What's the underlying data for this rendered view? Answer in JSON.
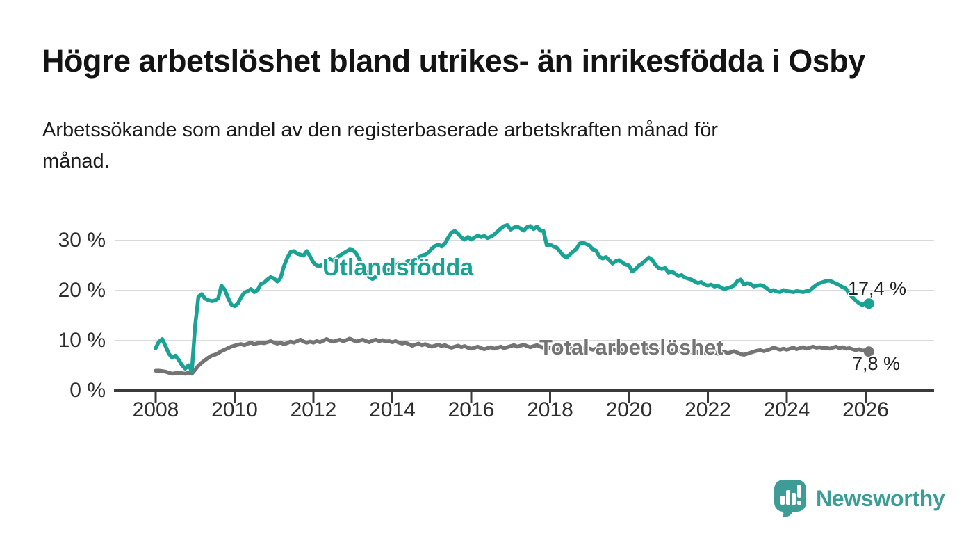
{
  "chart_data": {
    "type": "line",
    "title": "Högre arbetslöshet bland utrikes- än inrikesfödda i Osby",
    "subtitle": "Arbetssökande som andel av den registerbaserade arbetskraften månad för månad.",
    "subtitle_lines": [
      "Arbetssökande som andel av den registerbaserade arbetskraften månad för",
      "månad."
    ],
    "x_axis": {
      "ticks": [
        2008,
        2010,
        2012,
        2014,
        2016,
        2018,
        2020,
        2022,
        2024,
        2026
      ],
      "start_year": 2008,
      "start_month": 1,
      "frequency": "monthly"
    },
    "y_axis": {
      "tick_labels": [
        "0 %",
        "10 %",
        "20 %",
        "30 %"
      ],
      "tick_values": [
        0,
        10,
        20,
        30
      ],
      "unit": "%",
      "ylim": [
        0,
        34
      ]
    },
    "grid": true,
    "legend": "inline-labels",
    "series": [
      {
        "name": "Utlandsfödda",
        "color": "#1AA295",
        "end_value": 17.4,
        "end_label": "17,4 %",
        "values": [
          8.5,
          9.8,
          10.3,
          8.9,
          7.4,
          6.6,
          7.0,
          6.2,
          5.1,
          4.4,
          5.1,
          3.9,
          13.0,
          18.8,
          19.3,
          18.4,
          18.1,
          17.9,
          18.0,
          18.4,
          21.0,
          20.2,
          18.6,
          17.2,
          16.9,
          17.4,
          18.7,
          19.6,
          19.9,
          20.3,
          19.7,
          20.1,
          21.3,
          21.6,
          22.2,
          22.7,
          22.4,
          21.8,
          22.5,
          24.8,
          26.5,
          27.7,
          27.9,
          27.4,
          27.2,
          27.0,
          27.9,
          26.8,
          25.6,
          25.0,
          24.9,
          25.3,
          25.8,
          26.3,
          26.0,
          26.5,
          27.0,
          27.4,
          27.8,
          28.2,
          28.1,
          27.4,
          26.2,
          25.0,
          23.6,
          22.6,
          22.3,
          22.8,
          23.4,
          23.9,
          24.3,
          24.0,
          24.4,
          24.9,
          25.4,
          25.1,
          25.6,
          26.0,
          25.7,
          26.2,
          26.6,
          27.0,
          27.2,
          27.6,
          28.4,
          28.9,
          29.2,
          28.8,
          29.4,
          30.6,
          31.6,
          31.9,
          31.4,
          30.6,
          30.2,
          30.7,
          30.2,
          30.6,
          31.0,
          30.7,
          30.9,
          30.5,
          30.8,
          31.2,
          31.8,
          32.4,
          32.9,
          33.1,
          32.2,
          32.6,
          32.8,
          32.4,
          32.0,
          32.7,
          32.9,
          32.3,
          32.8,
          32.0,
          31.9,
          29.0,
          29.2,
          28.8,
          28.6,
          27.8,
          27.0,
          26.6,
          27.2,
          27.8,
          28.3,
          29.4,
          29.6,
          29.3,
          29.0,
          28.2,
          28.0,
          26.8,
          26.4,
          26.7,
          26.1,
          25.4,
          25.9,
          26.1,
          25.6,
          25.2,
          25.0,
          23.8,
          24.3,
          25.0,
          25.4,
          26.0,
          26.6,
          26.2,
          25.2,
          24.5,
          24.3,
          24.5,
          23.6,
          23.8,
          23.4,
          22.9,
          23.1,
          22.6,
          22.4,
          22.2,
          21.8,
          21.5,
          21.7,
          21.2,
          21.0,
          21.2,
          20.8,
          21.0,
          20.6,
          20.3,
          20.5,
          20.7,
          21.0,
          21.9,
          22.2,
          21.2,
          21.5,
          21.3,
          20.8,
          21.0,
          21.1,
          20.9,
          20.4,
          19.9,
          20.1,
          19.8,
          19.7,
          20.1,
          19.9,
          19.8,
          19.7,
          19.9,
          19.8,
          19.7,
          19.9,
          20.0,
          20.6,
          21.1,
          21.5,
          21.7,
          21.9,
          22.0,
          21.7,
          21.4,
          21.1,
          20.7,
          20.4,
          19.4,
          18.7,
          18.0,
          17.5,
          17.1,
          17.6,
          17.4
        ]
      },
      {
        "name": "Total arbetslöshet",
        "color": "#747474",
        "end_value": 7.8,
        "end_label": "7,8 %",
        "values": [
          4.0,
          4.0,
          3.9,
          3.8,
          3.6,
          3.4,
          3.5,
          3.6,
          3.5,
          3.4,
          3.6,
          3.4,
          4.2,
          5.0,
          5.6,
          6.1,
          6.6,
          7.0,
          7.2,
          7.5,
          7.9,
          8.2,
          8.5,
          8.8,
          9.0,
          9.2,
          9.3,
          9.1,
          9.4,
          9.6,
          9.3,
          9.5,
          9.6,
          9.5,
          9.7,
          9.9,
          9.6,
          9.4,
          9.6,
          9.3,
          9.5,
          9.8,
          9.6,
          9.9,
          10.2,
          9.8,
          9.6,
          9.8,
          9.6,
          9.9,
          9.7,
          10.0,
          10.3,
          10.0,
          9.8,
          10.0,
          10.2,
          9.9,
          10.1,
          10.4,
          10.1,
          9.8,
          10.0,
          10.2,
          9.9,
          9.7,
          10.0,
          10.2,
          9.9,
          10.1,
          9.8,
          9.9,
          9.7,
          9.9,
          9.6,
          9.4,
          9.6,
          9.3,
          9.0,
          9.2,
          9.4,
          9.1,
          9.3,
          9.0,
          8.8,
          9.0,
          9.2,
          8.9,
          9.1,
          8.8,
          8.6,
          8.8,
          9.0,
          8.7,
          8.9,
          8.6,
          8.4,
          8.6,
          8.8,
          8.5,
          8.3,
          8.5,
          8.7,
          8.4,
          8.6,
          8.8,
          8.5,
          8.7,
          8.9,
          9.1,
          8.8,
          9.0,
          9.2,
          8.9,
          8.7,
          8.9,
          9.1,
          8.8,
          8.6,
          8.4,
          8.6,
          8.4,
          8.2,
          8.4,
          8.6,
          8.3,
          8.5,
          8.7,
          8.4,
          8.2,
          8.4,
          8.6,
          8.4,
          8.2,
          8.4,
          8.1,
          8.3,
          8.5,
          8.2,
          8.4,
          8.1,
          8.3,
          8.0,
          8.2,
          8.0,
          8.2,
          8.4,
          8.6,
          8.8,
          8.6,
          8.4,
          8.6,
          8.3,
          8.1,
          8.3,
          8.0,
          8.2,
          8.0,
          8.2,
          7.9,
          8.1,
          7.8,
          8.0,
          7.7,
          7.9,
          7.6,
          7.8,
          7.5,
          7.7,
          7.5,
          7.7,
          7.4,
          7.6,
          7.8,
          7.5,
          7.7,
          7.9,
          7.6,
          7.3,
          7.2,
          7.4,
          7.6,
          7.8,
          8.0,
          8.1,
          7.9,
          8.1,
          8.3,
          8.6,
          8.4,
          8.2,
          8.4,
          8.2,
          8.4,
          8.6,
          8.3,
          8.5,
          8.7,
          8.4,
          8.6,
          8.8,
          8.6,
          8.7,
          8.5,
          8.6,
          8.4,
          8.6,
          8.8,
          8.5,
          8.7,
          8.4,
          8.5,
          8.3,
          8.1,
          8.3,
          8.0,
          8.1,
          7.8
        ]
      }
    ]
  },
  "branding": {
    "logo_text": "Newsworthy",
    "logo_color": "#3D9D96"
  },
  "icons": {
    "logo_icon": "speech-bubble-bar-chart-icon"
  },
  "colors": {
    "accent_teal": "#1AA295",
    "series_gray": "#747474",
    "gridline": "#DADADA",
    "axis": "#3A3A3A",
    "text": "#1b1b1b"
  }
}
